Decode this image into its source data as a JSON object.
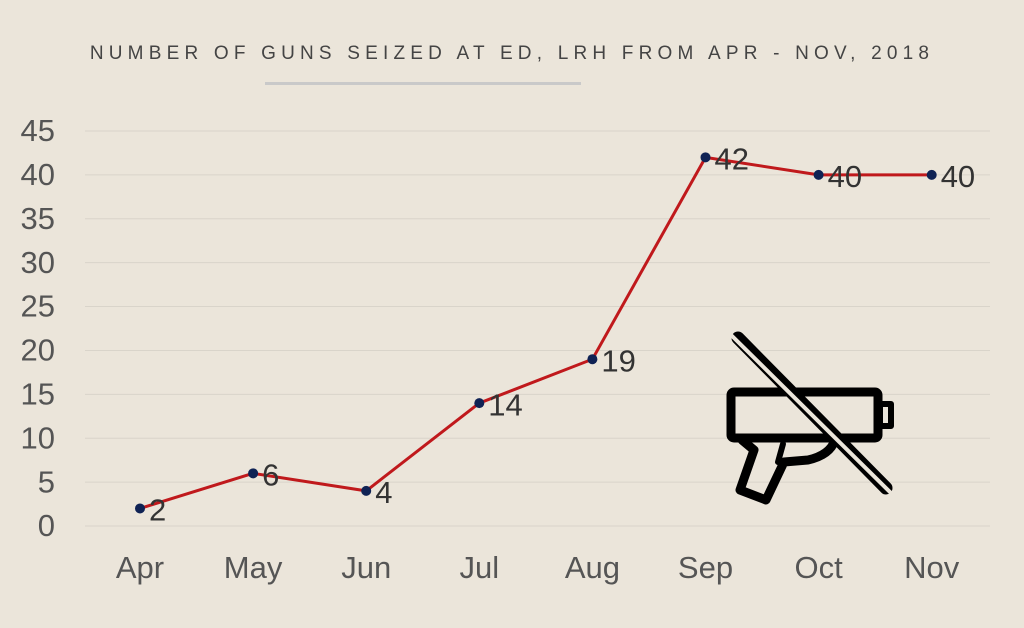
{
  "chart_data": {
    "type": "line",
    "title": "NUMBER OF GUNS SEIZED AT ED, LRH FROM APR - NOV, 2018",
    "categories": [
      "Apr",
      "May",
      "Jun",
      "Jul",
      "Aug",
      "Sep",
      "Oct",
      "Nov"
    ],
    "values": [
      2,
      6,
      4,
      14,
      19,
      42,
      40,
      40
    ],
    "color": "#c0191c",
    "marker_color": "#0f2254",
    "ylim": [
      0,
      45
    ],
    "yticks": [
      0,
      5,
      10,
      15,
      20,
      25,
      30,
      35,
      40,
      45
    ],
    "grid": true
  }
}
